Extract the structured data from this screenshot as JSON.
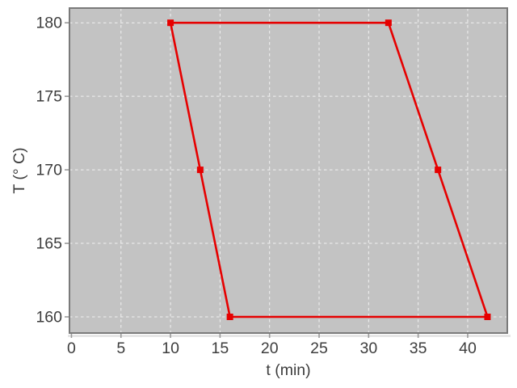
{
  "chart_data": {
    "type": "line",
    "title": "",
    "xlabel": "t (min)",
    "ylabel": "T (° C)",
    "x_ticks": [
      0,
      5,
      10,
      15,
      20,
      25,
      30,
      35,
      40
    ],
    "y_ticks": [
      160,
      165,
      170,
      175,
      180
    ],
    "xlim": [
      -0.2,
      44.0
    ],
    "ylim": [
      158.9,
      181.0
    ],
    "grid": true,
    "legend": false,
    "series": [
      {
        "color": "#e60000",
        "marker": "square",
        "marker_size": 8,
        "line_width": 2.6,
        "points": [
          [
            10,
            180
          ],
          [
            32,
            180
          ],
          [
            37,
            170
          ],
          [
            42,
            160
          ],
          [
            16,
            160
          ],
          [
            13,
            170
          ],
          [
            10,
            180
          ]
        ]
      }
    ],
    "style": {
      "plot_background": "#c3c3c3",
      "frame_color": "#7a7a7a",
      "grid_color": "#f7f7f7",
      "tick_color": "#9a9a9a",
      "text_color": "#3d3d3d",
      "shadow_color": "#e6e6e6"
    }
  }
}
